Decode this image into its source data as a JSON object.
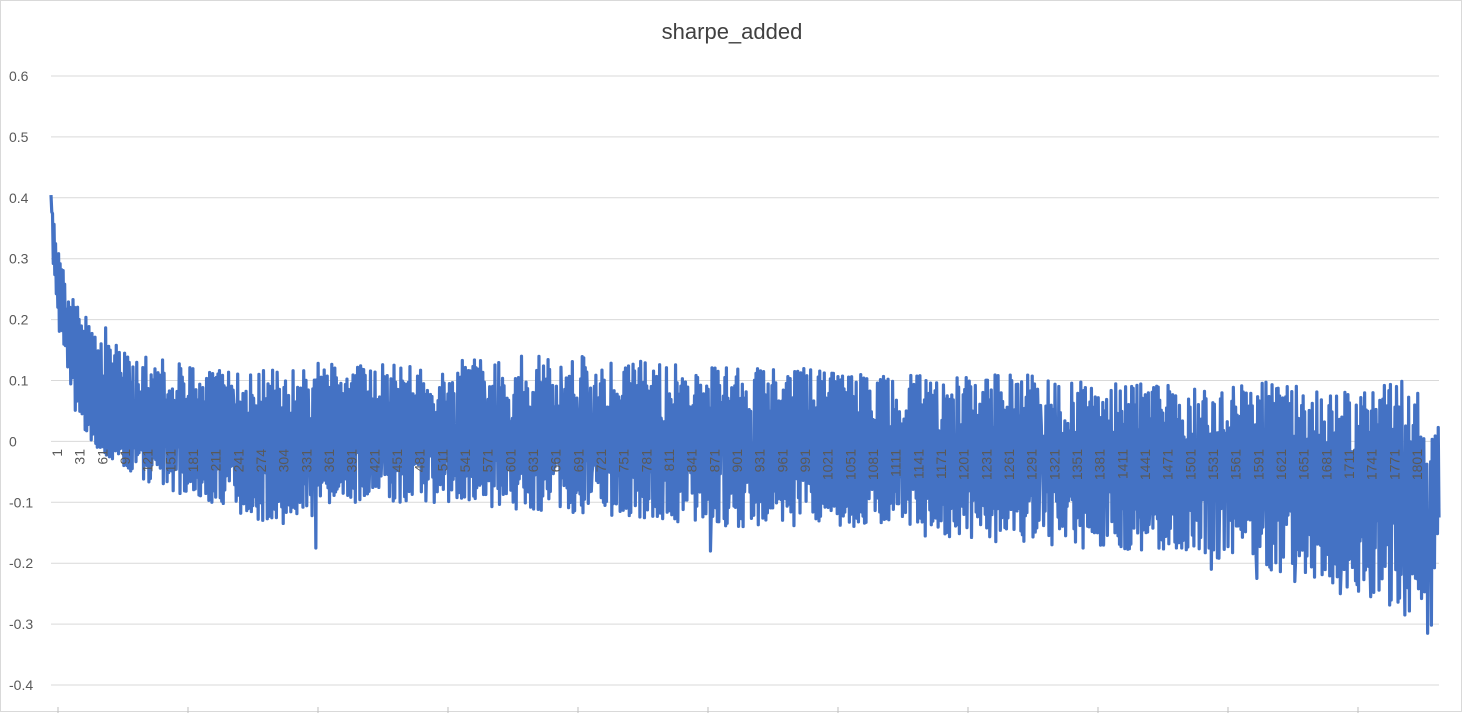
{
  "chart_data": {
    "type": "line",
    "title": "sharpe_added",
    "xlabel": "",
    "ylabel": "",
    "ylim": [
      -0.4,
      0.6
    ],
    "yticks": [
      "0.6",
      "0.5",
      "0.4",
      "0.3",
      "0.2",
      "0.1",
      "0",
      "-0.1",
      "-0.2",
      "-0.3",
      "-0.4"
    ],
    "xlim": [
      1,
      1830
    ],
    "xticks": [
      "1",
      "31",
      "61",
      "91",
      "121",
      "151",
      "181",
      "211",
      "241",
      "274",
      "304",
      "331",
      "361",
      "391",
      "421",
      "451",
      "481",
      "511",
      "541",
      "571",
      "601",
      "631",
      "661",
      "691",
      "721",
      "751",
      "781",
      "811",
      "841",
      "871",
      "901",
      "931",
      "961",
      "991",
      "1021",
      "1051",
      "1081",
      "1111",
      "1141",
      "1171",
      "1201",
      "1231",
      "1261",
      "1291",
      "1321",
      "1351",
      "1381",
      "1411",
      "1441",
      "1471",
      "1501",
      "1531",
      "1561",
      "1591",
      "1621",
      "1651",
      "1681",
      "1711",
      "1741",
      "1771",
      "1801"
    ],
    "grid": true,
    "legend": "none",
    "series": [
      {
        "color": "#4472C4",
        "envelope": {
          "x": [
            1,
            3,
            8,
            15,
            25,
            40,
            60,
            80,
            100,
            130,
            160,
            200,
            250,
            300,
            350,
            400,
            500,
            600,
            700,
            800,
            900,
            1000,
            1100,
            1200,
            1300,
            1400,
            1500,
            1550,
            1600,
            1650,
            1700,
            1750,
            1780,
            1800,
            1820,
            1830
          ],
          "high": [
            0.48,
            0.38,
            0.33,
            0.29,
            0.26,
            0.22,
            0.2,
            0.18,
            0.15,
            0.14,
            0.13,
            0.12,
            0.12,
            0.12,
            0.13,
            0.13,
            0.13,
            0.14,
            0.14,
            0.13,
            0.12,
            0.12,
            0.11,
            0.11,
            0.11,
            0.1,
            0.09,
            0.09,
            0.1,
            0.09,
            0.08,
            0.09,
            0.1,
            0.09,
            0.06,
            0.03
          ],
          "low": [
            0.4,
            0.3,
            0.22,
            0.15,
            0.08,
            0.02,
            -0.01,
            -0.03,
            -0.05,
            -0.07,
            -0.08,
            -0.1,
            -0.12,
            -0.14,
            -0.12,
            -0.1,
            -0.1,
            -0.11,
            -0.12,
            -0.13,
            -0.14,
            -0.14,
            -0.15,
            -0.16,
            -0.17,
            -0.18,
            -0.18,
            -0.2,
            -0.21,
            -0.22,
            -0.24,
            -0.26,
            -0.28,
            -0.29,
            -0.31,
            -0.12
          ],
          "spikes_low": [
            [
              350,
              -0.175
            ],
            [
              870,
              -0.18
            ],
            [
              1530,
              -0.21
            ],
            [
              1590,
              -0.225
            ],
            [
              1640,
              -0.23
            ],
            [
              1700,
              -0.25
            ],
            [
              1740,
              -0.255
            ],
            [
              1785,
              -0.285
            ],
            [
              1815,
              -0.315
            ]
          ]
        },
        "last_value": -0.125
      }
    ]
  }
}
